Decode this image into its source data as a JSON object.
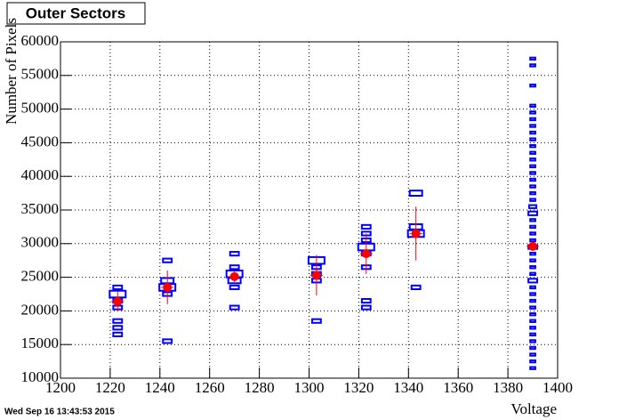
{
  "chart_data": {
    "type": "box2d",
    "title": "Outer Sectors",
    "x_label": "Voltage",
    "y_label": "Number of Pixels",
    "xlim": [
      1200,
      1400
    ],
    "ylim": [
      10000,
      60000
    ],
    "xticks": [
      1200,
      1220,
      1240,
      1260,
      1280,
      1300,
      1320,
      1340,
      1360,
      1380,
      1400
    ],
    "yticks": [
      10000,
      15000,
      20000,
      25000,
      30000,
      35000,
      40000,
      45000,
      50000,
      55000,
      60000
    ],
    "grid": true,
    "box_color": "#0000ff",
    "columns": [
      {
        "x": 1223,
        "y": [
          16500,
          17500,
          18500,
          20500,
          21500,
          22500,
          23500
        ],
        "counts": [
          3,
          3,
          3,
          3,
          3,
          10,
          3
        ]
      },
      {
        "x": 1243,
        "y": [
          15500,
          22500,
          23500,
          24500,
          27500
        ],
        "counts": [
          3,
          3,
          10,
          6,
          3
        ]
      },
      {
        "x": 1270,
        "y": [
          20500,
          23500,
          24500,
          25500,
          26500,
          28500
        ],
        "counts": [
          3,
          3,
          6,
          10,
          3,
          3
        ]
      },
      {
        "x": 1303,
        "y": [
          18500,
          24500,
          25500,
          26500,
          27500
        ],
        "counts": [
          3,
          3,
          3,
          3,
          10
        ]
      },
      {
        "x": 1323,
        "y": [
          20500,
          21500,
          26500,
          28500,
          29500,
          30500,
          31500,
          32500
        ],
        "counts": [
          3,
          3,
          3,
          3,
          10,
          3,
          3,
          3
        ]
      },
      {
        "x": 1343,
        "y": [
          23500,
          31500,
          32500,
          37500
        ],
        "counts": [
          3,
          10,
          6,
          6
        ]
      },
      {
        "x": 1390,
        "y": [
          11500,
          12500,
          13500,
          14500,
          15500,
          16500,
          17500,
          18500,
          19500,
          20500,
          21500,
          22500,
          23500,
          24500,
          25500,
          26500,
          27500,
          28500,
          29500,
          30500,
          31500,
          32500,
          33500,
          34500,
          35500,
          36500,
          37500,
          38500,
          39500,
          40500,
          41500,
          42500,
          43500,
          44500,
          45500,
          46500,
          47500,
          48500,
          49500,
          50500,
          53500,
          56500,
          57500
        ],
        "counts": [
          1,
          1,
          1,
          1,
          1,
          1,
          1,
          1,
          1,
          1,
          1,
          1,
          1,
          3,
          1,
          1,
          1,
          1,
          3,
          1,
          1,
          1,
          1,
          3,
          2,
          1,
          1,
          1,
          1,
          1,
          1,
          1,
          1,
          1,
          1,
          1,
          1,
          1,
          1,
          1,
          1,
          1,
          1
        ]
      }
    ],
    "profile": {
      "color": "#ff0000",
      "x": [
        1223,
        1243,
        1270,
        1303,
        1323,
        1343,
        1390
      ],
      "values": [
        21400,
        23500,
        25100,
        25300,
        28500,
        31500,
        29600
      ],
      "errors": [
        1500,
        2500,
        800,
        3000,
        3000,
        4000,
        300
      ]
    }
  },
  "footer": {
    "timestamp": "Wed Sep 16 13:43:53 2015"
  }
}
